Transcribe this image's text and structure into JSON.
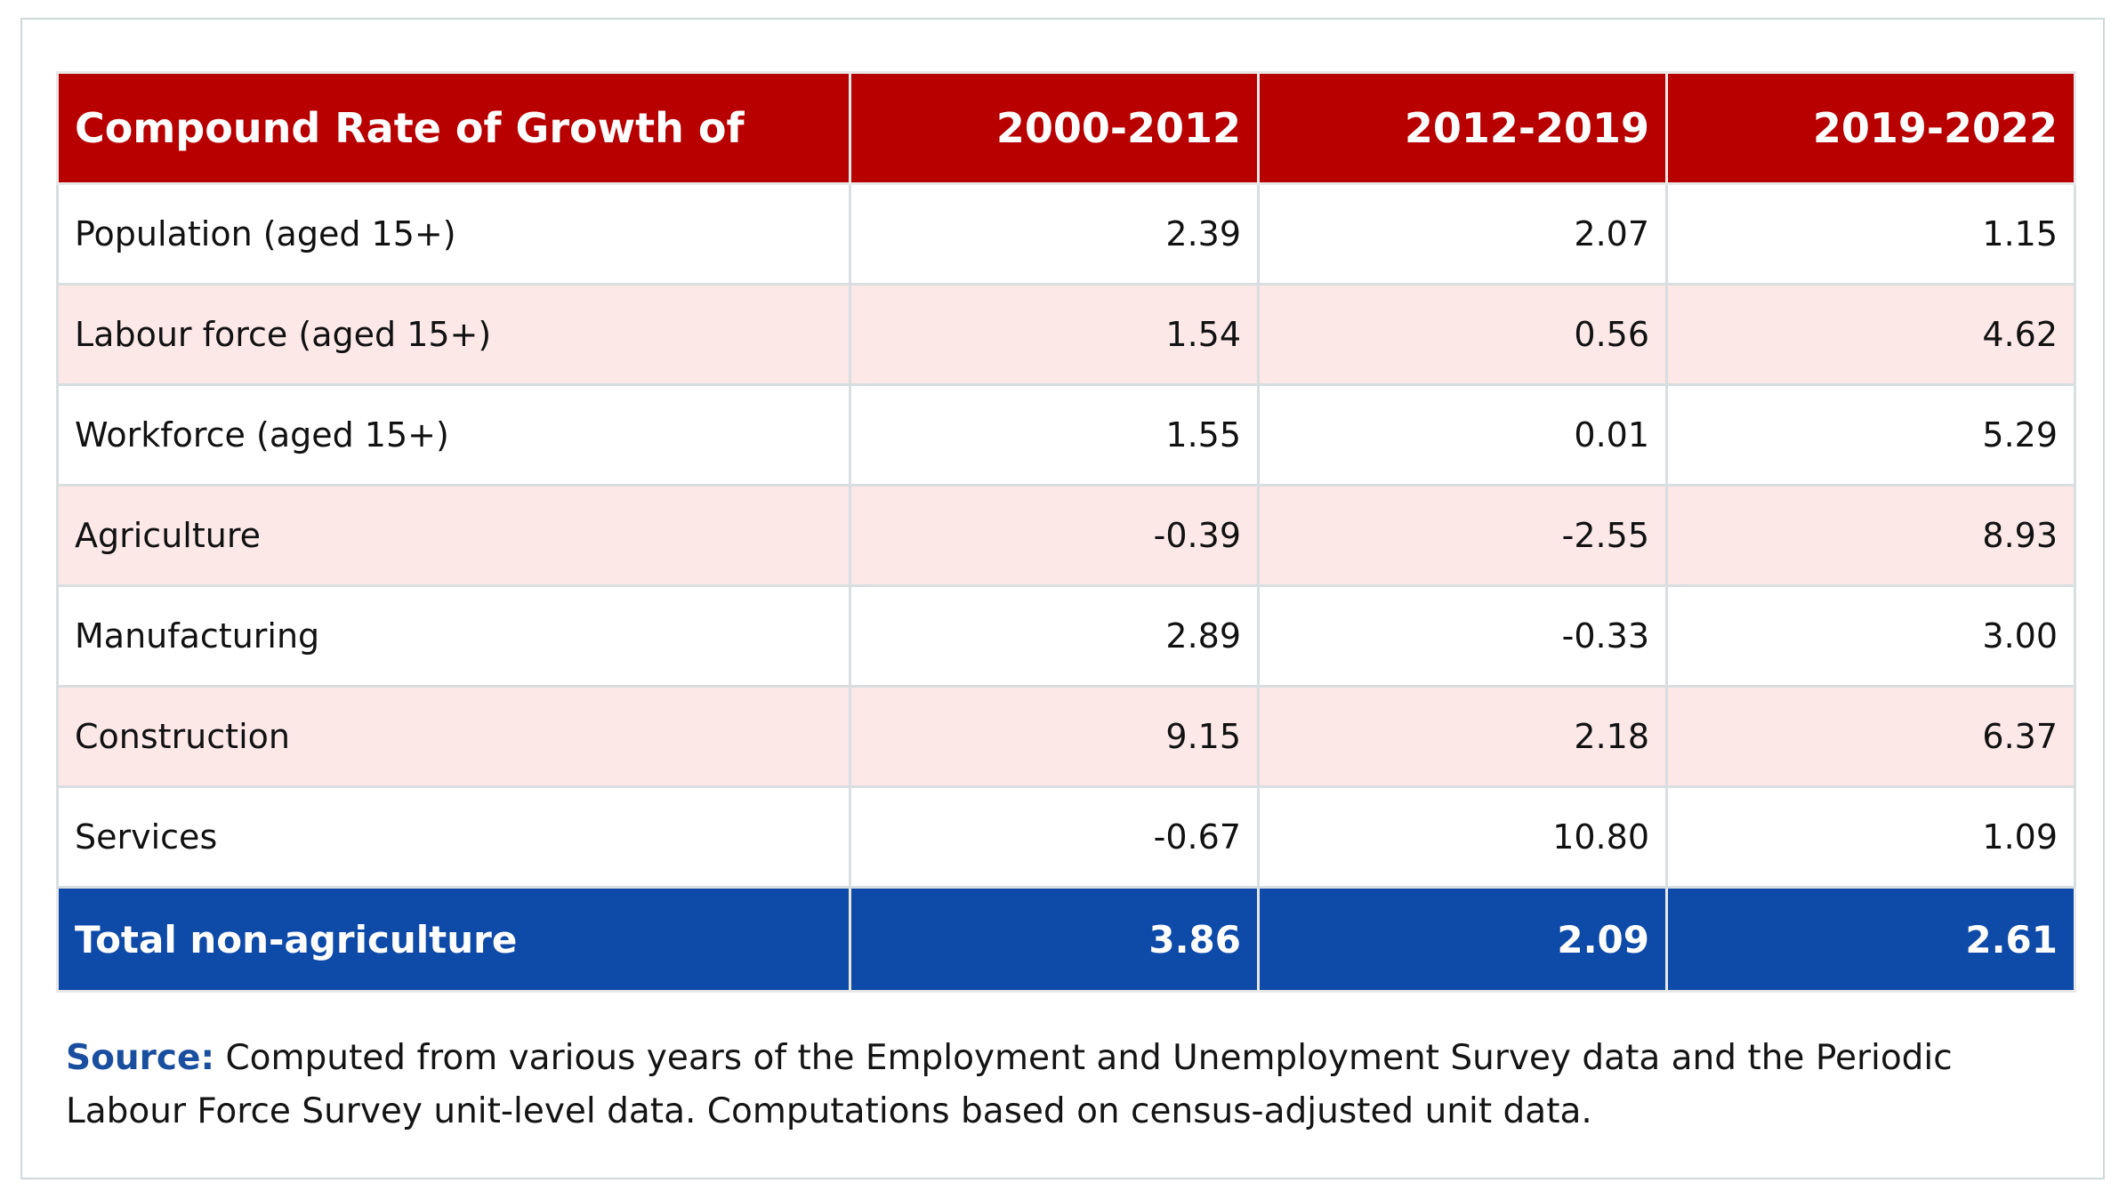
{
  "table": {
    "header": {
      "label": "Compound Rate of Growth of",
      "periods": [
        "2000-2012",
        "2012-2019",
        "2019-2022"
      ]
    },
    "rows": [
      {
        "label": "Population (aged 15+)",
        "values": [
          "2.39",
          "2.07",
          "1.15"
        ]
      },
      {
        "label": "Labour force (aged 15+)",
        "values": [
          "1.54",
          "0.56",
          "4.62"
        ]
      },
      {
        "label": "Workforce (aged 15+)",
        "values": [
          "1.55",
          "0.01",
          "5.29"
        ]
      },
      {
        "label": "Agriculture",
        "values": [
          "-0.39",
          "-2.55",
          "8.93"
        ]
      },
      {
        "label": "Manufacturing",
        "values": [
          "2.89",
          "-0.33",
          "3.00"
        ]
      },
      {
        "label": "Construction",
        "values": [
          "9.15",
          "2.18",
          "6.37"
        ]
      },
      {
        "label": "Services",
        "values": [
          "-0.67",
          "10.80",
          "1.09"
        ]
      }
    ],
    "total": {
      "label": "Total non-agriculture",
      "values": [
        "3.86",
        "2.09",
        "2.61"
      ]
    }
  },
  "source": {
    "label": "Source:",
    "text": "Computed from various years of the Employment and Unemployment Survey data and the Periodic Labour Force Survey unit-level data. Computations based on census-adjusted unit data."
  },
  "colors": {
    "header_bg": "#b80000",
    "total_bg": "#0e4aa8",
    "stripe_bg": "#fde8e8",
    "source_label": "#1a4fa0"
  }
}
